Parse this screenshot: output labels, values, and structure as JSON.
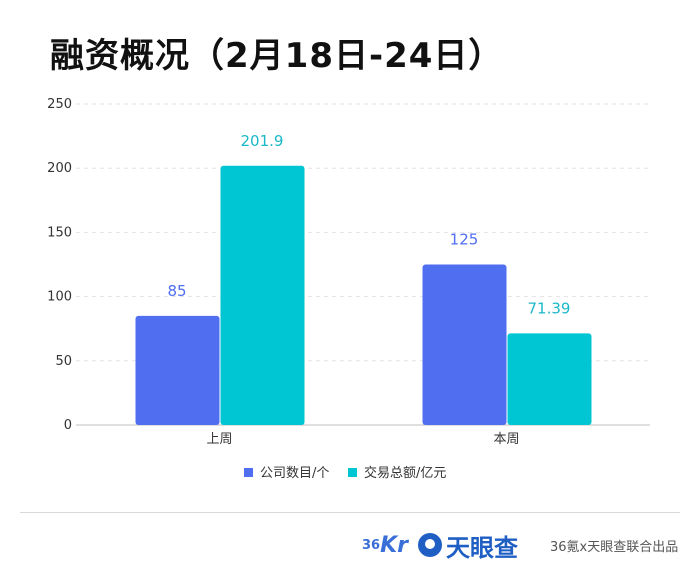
{
  "chart_data": {
    "type": "bar",
    "title": "融资概况（2月18日-24日）",
    "categories": [
      "上周",
      "本周"
    ],
    "series": [
      {
        "name": "公司数目/个",
        "values": [
          85,
          125
        ],
        "labels": [
          "85",
          "125"
        ],
        "color": "#4f6ef0",
        "label_color": "#4f6ef0"
      },
      {
        "name": "交易总额/亿元",
        "values": [
          201.9,
          71.39
        ],
        "labels": [
          "201.9",
          "71.39"
        ],
        "color": "#00c5d3",
        "label_color": "#1ab8c8"
      }
    ],
    "ylim": [
      0,
      250
    ],
    "yticks": [
      0,
      50,
      100,
      150,
      200,
      250
    ],
    "grid": true,
    "legend": "bottom"
  },
  "footer": {
    "logo_36kr": "36Kr",
    "logo_tyc": "天眼查",
    "credit": "36氪x天眼查联合出品"
  }
}
